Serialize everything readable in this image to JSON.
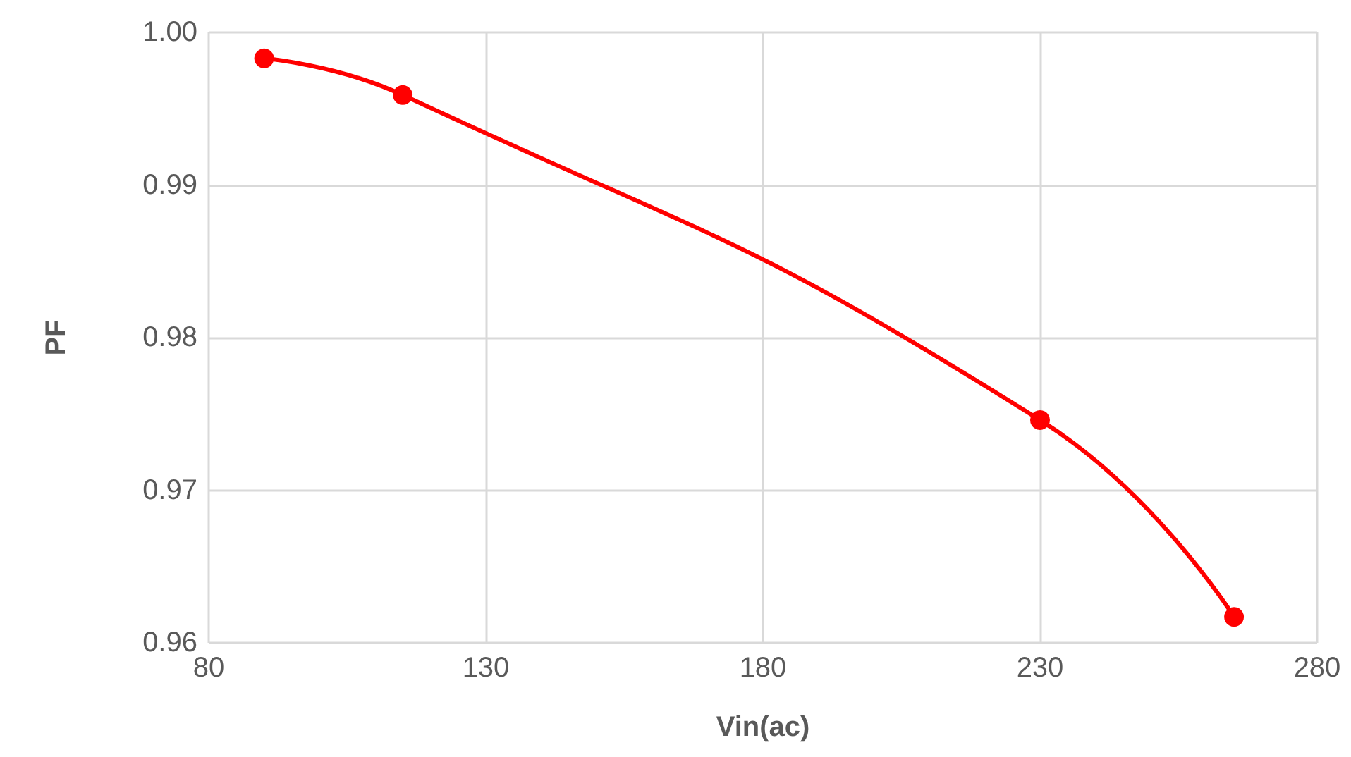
{
  "chart_data": {
    "type": "line",
    "xlabel": "Vin(ac)",
    "ylabel": "PF",
    "x": [
      90,
      115,
      230,
      265
    ],
    "series": [
      {
        "color": "#ff0000",
        "values": [
          0.9983,
          0.9959,
          0.9746,
          0.9617
        ]
      }
    ],
    "xlim": [
      80,
      280
    ],
    "xticks": [
      80,
      130,
      180,
      230,
      280
    ],
    "ylim": [
      0.96,
      1.0
    ],
    "yticks": [
      {
        "value": 0.96,
        "label": "0.96"
      },
      {
        "value": 0.97,
        "label": "0.97"
      },
      {
        "value": 0.98,
        "label": "0.98"
      },
      {
        "value": 0.99,
        "label": "0.99"
      },
      {
        "value": 1.0,
        "label": "1.00"
      }
    ],
    "grid": true,
    "marker": "circle",
    "line_style": "solid"
  }
}
